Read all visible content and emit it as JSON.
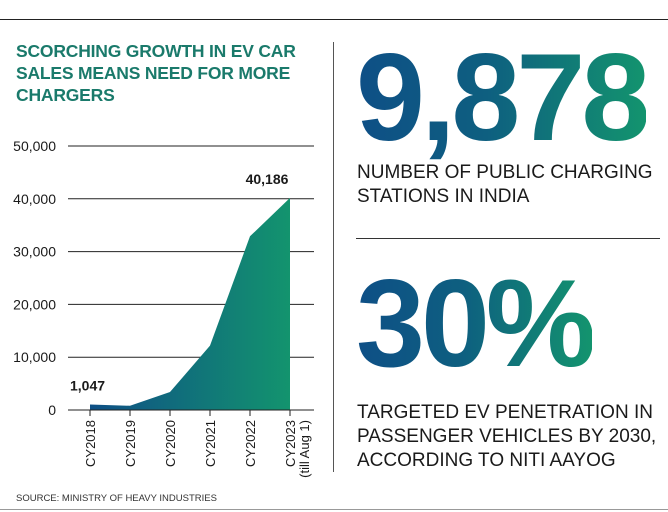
{
  "title": "SCORCHING GROWTH IN EV CAR SALES MEANS NEED FOR MORE CHARGERS",
  "stats": [
    {
      "value": "9,878",
      "label": "NUMBER OF PUBLIC CHARGING STATIONS IN INDIA"
    },
    {
      "value": "30%",
      "label": "TARGETED EV PENETRATION IN PASSENGER VEHICLES BY 2030, ACCORDING TO NITI AAYOG"
    }
  ],
  "source": "SOURCE: MINISTRY OF HEAVY INDUSTRIES",
  "colors": {
    "title": "#1a7a6b",
    "area_start": "#0e4f86",
    "area_end": "#13946e"
  },
  "chart_data": {
    "type": "area",
    "categories": [
      "CY2018",
      "CY2019",
      "CY2020",
      "CY2021",
      "CY2022",
      "CY2023"
    ],
    "category_sublabels": [
      "",
      "",
      "",
      "",
      "",
      "(till Aug 1)"
    ],
    "values": [
      1047,
      800,
      3400,
      12200,
      32900,
      40186
    ],
    "data_labels": [
      {
        "index": 0,
        "text": "1,047"
      },
      {
        "index": 5,
        "text": "40,186"
      }
    ],
    "yticks": [
      0,
      10000,
      20000,
      30000,
      40000,
      50000
    ],
    "ytick_labels": [
      "0",
      "10,000",
      "20,000",
      "30,000",
      "40,000",
      "50,000"
    ],
    "ylim": [
      0,
      50000
    ],
    "grid": true,
    "title": "",
    "xlabel": "",
    "ylabel": ""
  }
}
